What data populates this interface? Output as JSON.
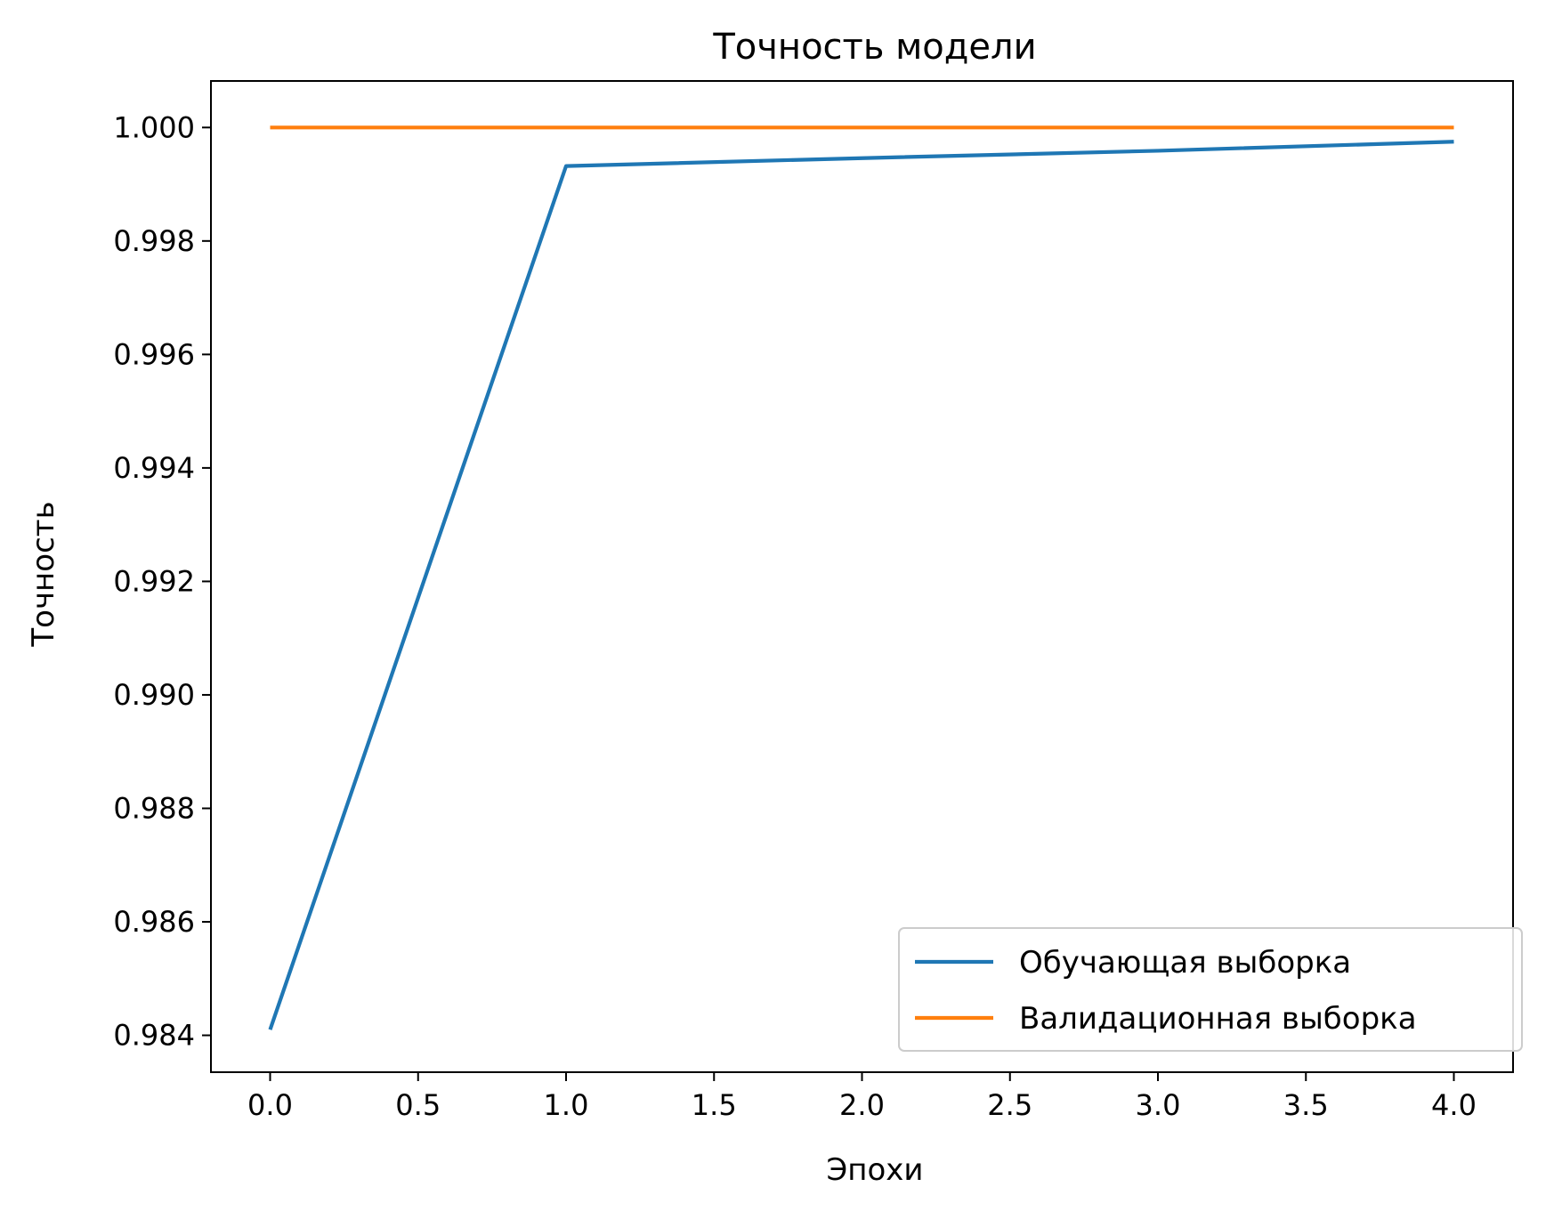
{
  "chart_data": {
    "type": "line",
    "title": "Точность модели",
    "xlabel": "Эпохи",
    "ylabel": "Точность",
    "xlim": [
      -0.2,
      4.2
    ],
    "ylim": [
      0.98335,
      1.00082
    ],
    "xticks": [
      0.0,
      0.5,
      1.0,
      1.5,
      2.0,
      2.5,
      3.0,
      3.5,
      4.0
    ],
    "xtick_labels": [
      "0.0",
      "0.5",
      "1.0",
      "1.5",
      "2.0",
      "2.5",
      "3.0",
      "3.5",
      "4.0"
    ],
    "yticks": [
      0.984,
      0.986,
      0.988,
      0.99,
      0.992,
      0.994,
      0.996,
      0.998,
      1.0
    ],
    "ytick_labels": [
      "0.984",
      "0.986",
      "0.988",
      "0.990",
      "0.992",
      "0.994",
      "0.996",
      "0.998",
      "1.000"
    ],
    "x": [
      0,
      1,
      2,
      3,
      4
    ],
    "series": [
      {
        "name": "Обучающая выборка",
        "color": "#1f77b4",
        "values": [
          0.9841,
          0.99932,
          0.99946,
          0.99959,
          0.99975
        ]
      },
      {
        "name": "Валидационная выборка",
        "color": "#ff7f0e",
        "values": [
          1.0,
          1.0,
          1.0,
          1.0,
          1.0
        ]
      }
    ],
    "grid": false,
    "legend_position": "lower-right"
  }
}
